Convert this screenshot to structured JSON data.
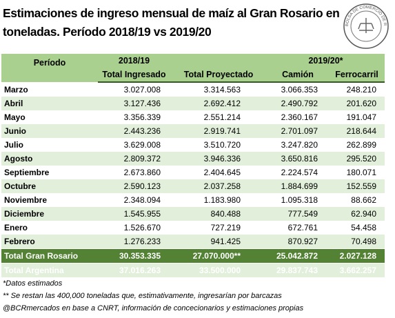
{
  "header": {
    "title_line1": "Estimaciones de ingreso mensual de maíz al Gran Rosario en",
    "title_line2": "toneladas. Período 2018/19 vs 2019/20",
    "logo_text": "BOLSA DE COMERCIO DE ROSARIO"
  },
  "table": {
    "group_headers": [
      "Período",
      "2018/19",
      "2019/20*"
    ],
    "columns": [
      "Total Ingresado",
      "Total Proyectado",
      "Camión",
      "Ferrocarril"
    ],
    "rows": [
      [
        "Marzo",
        "3.027.008",
        "3.314.563",
        "3.066.353",
        "248.210"
      ],
      [
        "Abril",
        "3.127.436",
        "2.692.412",
        "2.490.792",
        "201.620"
      ],
      [
        "Mayo",
        "3.356.339",
        "2.551.214",
        "2.360.167",
        "191.047"
      ],
      [
        "Junio",
        "2.443.236",
        "2.919.741",
        "2.701.097",
        "218.644"
      ],
      [
        "Julio",
        "3.629.008",
        "3.510.720",
        "3.247.820",
        "262.899"
      ],
      [
        "Agosto",
        "2.809.372",
        "3.946.336",
        "3.650.816",
        "295.520"
      ],
      [
        "Septiembre",
        "2.673.860",
        "2.404.645",
        "2.224.574",
        "180.071"
      ],
      [
        "Octubre",
        "2.590.123",
        "2.037.258",
        "1.884.699",
        "152.559"
      ],
      [
        "Noviembre",
        "2.348.094",
        "1.183.980",
        "1.095.318",
        "88.662"
      ],
      [
        "Diciembre",
        "1.545.955",
        "840.488",
        "777.549",
        "62.940"
      ],
      [
        "Enero",
        "1.526.670",
        "727.219",
        "672.761",
        "54.458"
      ],
      [
        "Febrero",
        "1.276.233",
        "941.425",
        "870.927",
        "70.498"
      ]
    ],
    "totals": [
      [
        "Total Gran Rosario",
        "30.353.335",
        "27.070.000**",
        "25.042.872",
        "2.027.128"
      ],
      [
        "Total Argentina",
        "37.016.263",
        "33.500.000",
        "29.837.743",
        "3.662.257"
      ]
    ]
  },
  "notes": [
    "*Datos estimados",
    "** Se restan las 400,000 toneladas que, estimativamente, ingresarían por barcazas",
    "@BCRmercados en base a CNRT, información de concecionarios y estimaciones propias"
  ]
}
